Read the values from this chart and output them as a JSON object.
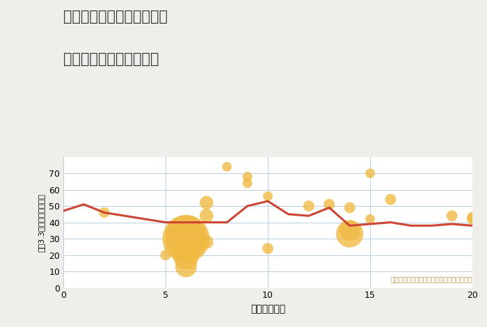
{
  "title_line1": "奈良県磯城郡三宅町三河の",
  "title_line2": "駅距離別中古戸建て価格",
  "xlabel": "駅距離（分）",
  "ylabel": "坪（3.3㎡）単価（万円）",
  "background_color": "#f0eeea",
  "plot_background": "#ffffff",
  "line_color": "#cc4433",
  "line_x": [
    0,
    1,
    2,
    3,
    5,
    6,
    7,
    8,
    9,
    10,
    11,
    12,
    13,
    14,
    15,
    16,
    17,
    18,
    19,
    20
  ],
  "line_y": [
    47,
    51,
    46,
    44,
    40,
    40,
    40,
    40,
    50,
    53,
    45,
    44,
    49,
    38,
    39,
    40,
    38,
    38,
    39,
    38
  ],
  "scatter_x": [
    2,
    5,
    6,
    6,
    6,
    6,
    6,
    7,
    7,
    7,
    8,
    9,
    9,
    10,
    10,
    12,
    13,
    14,
    14,
    14,
    15,
    15,
    16,
    19,
    20,
    20
  ],
  "scatter_y": [
    46,
    20,
    29,
    19,
    13,
    30,
    32,
    44,
    52,
    28,
    74,
    68,
    64,
    56,
    24,
    50,
    51,
    33,
    49,
    35,
    70,
    42,
    54,
    44,
    43,
    42
  ],
  "scatter_sizes": [
    120,
    120,
    1800,
    700,
    500,
    2400,
    1800,
    200,
    200,
    200,
    100,
    100,
    100,
    100,
    130,
    130,
    130,
    800,
    130,
    450,
    100,
    100,
    130,
    130,
    130,
    130
  ],
  "scatter_color": "#f0b942",
  "scatter_alpha": 0.78,
  "annotation": "円の大きさは、取引のあった物件面積を示す",
  "annotation_color": "#c8944a",
  "xlim": [
    0,
    20
  ],
  "ylim": [
    0,
    80
  ],
  "xticks": [
    0,
    5,
    10,
    15,
    20
  ],
  "yticks": [
    0,
    10,
    20,
    30,
    40,
    50,
    60,
    70
  ]
}
